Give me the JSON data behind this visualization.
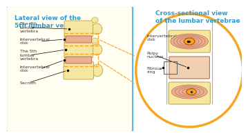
{
  "bg_color": "#ffffff",
  "left_panel_bg": "#fffbe6",
  "left_panel_border": "#4db8e8",
  "right_panel_border": "#f5a623",
  "vertebra_fill": "#f5e6a0",
  "vertebra_edge": "#c8a850",
  "disk_fill": "#e8b090",
  "disk_edge": "#c07050",
  "orange_fill": "#f5a623",
  "ring_fill": "#e8b090",
  "ring_line": "#c07050",
  "vertebra_body_fill": "#f5e6a0",
  "title_left": "Lateral view of the\n5th lumbar vertebra",
  "title_right": "Cross-sectional view\nof the lumbar vertebrae",
  "title_color": "#3399cc",
  "labels_left": [
    "The 4th\nlumbar\nvertebra",
    "Intervertebral\ndisk",
    "The 5th\nlumbar\nvertebra",
    "Intervertebral\ndisk",
    "Sacrum"
  ],
  "labels_right": [
    "Intervertebral\ndisk",
    "Pulpy\nnucleus",
    "Fibrous\nring"
  ],
  "label_color": "#333333",
  "dashed_line_color": "#f5a623",
  "font_size_title": 6.5,
  "font_size_label": 4.5
}
